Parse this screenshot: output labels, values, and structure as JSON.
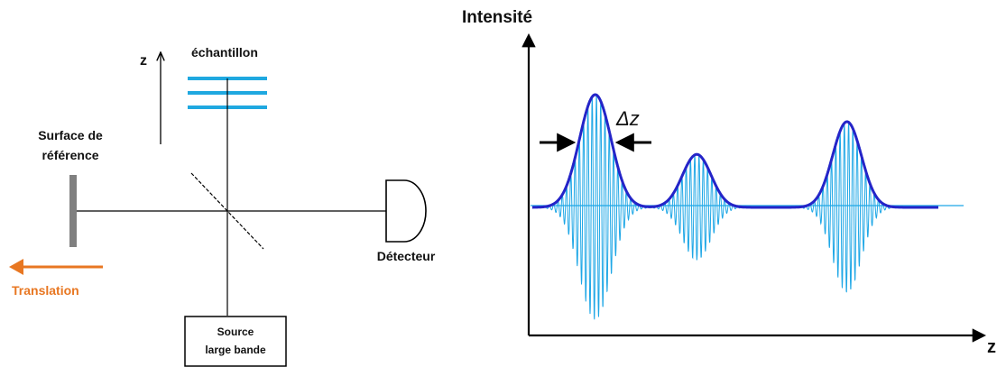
{
  "setup": {
    "z_axis_label": "z",
    "sample_label": "échantillon",
    "reference_label_line1": "Surface de",
    "reference_label_line2": "référence",
    "detector_label": "Détecteur",
    "translation_label": "Translation",
    "source_label_line1": "Source",
    "source_label_line2": "large bande"
  },
  "signal": {
    "y_axis_label": "Intensité",
    "x_axis_label": "z",
    "width_label": "Δz"
  },
  "colors": {
    "sample_layers": "#1fa8e0",
    "envelope": "#2424c8",
    "fringes": "#1ea7e6",
    "translation_arrow": "#e87722",
    "reference_mirror": "#808080"
  },
  "chart_data": {
    "type": "line",
    "title": "",
    "xlabel": "z",
    "ylabel": "Intensité",
    "packets": [
      {
        "center": 0.155,
        "peak": 1.0,
        "width": 0.055
      },
      {
        "center": 0.405,
        "peak": 0.47,
        "width": 0.05
      },
      {
        "center": 0.775,
        "peak": 0.76,
        "width": 0.05
      }
    ],
    "baseline": 0.0,
    "axis_ticks": "none"
  }
}
